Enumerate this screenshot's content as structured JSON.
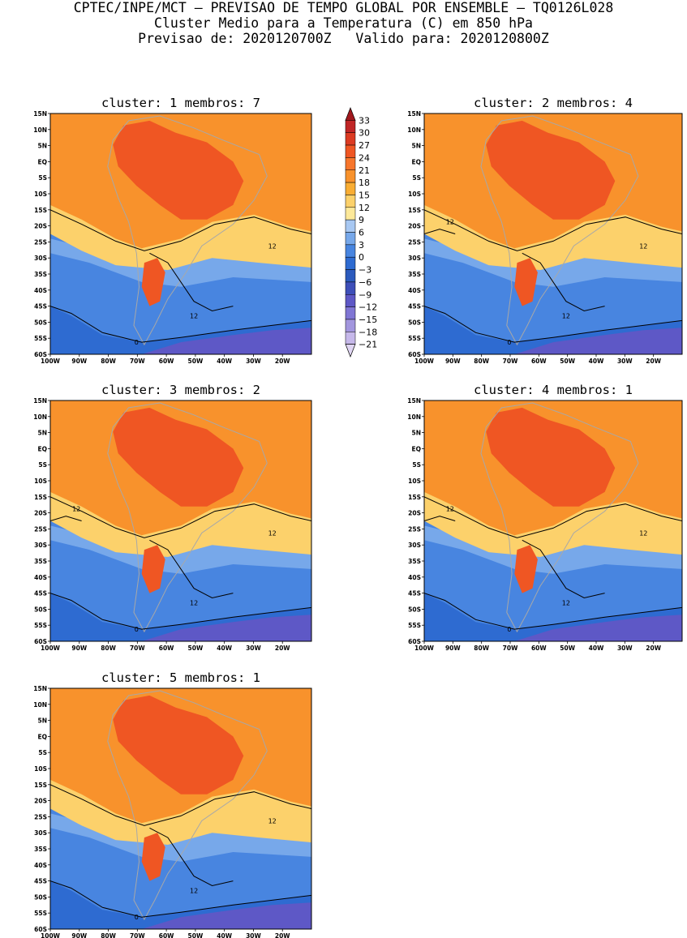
{
  "header": {
    "line1": "CPTEC/INPE/MCT – PREVISAO DE TEMPO GLOBAL POR ENSEMBLE – TQ0126L028",
    "line2": "Cluster Medio para a Temperatura (C) em 850 hPa",
    "line3": "Previsao de: 2020120700Z   Valido para: 2020120800Z"
  },
  "axes": {
    "lat_labels": [
      "15N",
      "10N",
      "5N",
      "EQ",
      "5S",
      "10S",
      "15S",
      "20S",
      "25S",
      "30S",
      "35S",
      "40S",
      "45S",
      "50S",
      "55S",
      "60S"
    ],
    "lon_labels": [
      "100W",
      "90W",
      "80W",
      "70W",
      "60W",
      "50W",
      "40W",
      "30W",
      "20W"
    ]
  },
  "panels": [
    {
      "title": "cluster: 1   membros: 7",
      "labels": [
        "12",
        "12",
        "0"
      ]
    },
    {
      "title": "cluster: 2   membros: 4",
      "labels": [
        "12",
        "12",
        "12",
        "0"
      ]
    },
    {
      "title": "cluster: 3   membros: 2",
      "labels": [
        "12",
        "12",
        "12",
        "0"
      ]
    },
    {
      "title": "cluster: 4   membros: 1",
      "labels": [
        "12",
        "12",
        "12",
        "0"
      ]
    },
    {
      "title": "cluster: 5   membros: 1",
      "labels": [
        "12",
        "12",
        "0"
      ]
    }
  ],
  "colorbar": {
    "labels": [
      "33",
      "30",
      "27",
      "24",
      "21",
      "18",
      "15",
      "12",
      "9",
      "6",
      "3",
      "0",
      "−3",
      "−6",
      "−9",
      "−12",
      "−15",
      "−18",
      "−21"
    ],
    "colors": [
      "#a1181e",
      "#c02626",
      "#dc3b22",
      "#ef5623",
      "#f7762c",
      "#f8922c",
      "#f9ad33",
      "#fcd16b",
      "#fde99a",
      "#a8c8f2",
      "#77a8ea",
      "#4885e0",
      "#2e6bd1",
      "#2c5bbd",
      "#3e4fb9",
      "#5e58c6",
      "#8076d4",
      "#a296de",
      "#c6b8ea",
      "#e0d6f3"
    ]
  },
  "colors": {
    "ocean_warm": "#f8922c",
    "land_hot": "#ef5623",
    "warm_mid": "#f9ad33",
    "yellow": "#fcd16b",
    "pale_yellow": "#fde99a",
    "light_blue": "#77a8ea",
    "blue": "#4885e0",
    "deep_blue": "#2e6bd1",
    "purple": "#5e58c6",
    "border_gray": "#a8a8a8"
  }
}
